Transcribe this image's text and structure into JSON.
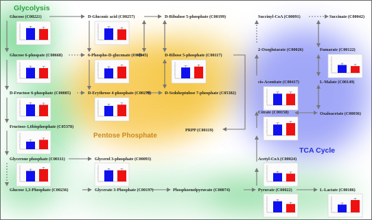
{
  "colors": {
    "blue": "#1010ee",
    "red": "#ee1111",
    "arrow": "#777777"
  },
  "titles": {
    "glycolysis": "Glycolysis",
    "pentose": "Pentose Phosphate",
    "tca": "TCA Cycle"
  },
  "metabolites": [
    {
      "label": "Glucose (C00221)"
    },
    {
      "label": "Glucose 6-phospate (C00668)"
    },
    {
      "label": "D-Fructose 6-phosphate (C00085)"
    },
    {
      "label": "Fructose-1,6bisphosphate (C05378)"
    },
    {
      "label": "Glycerone phosphate (C00111)"
    },
    {
      "label": "Glucose 1,3-Phosphate (C00236)"
    },
    {
      "label": "D-Gluconic acid (C00257)"
    },
    {
      "label": "6-Phospho-D-gluconate (C00345)"
    },
    {
      "label": "D-Erythrose 4-phosphate (C00279)"
    },
    {
      "label": "Glycerol 3-phosphate (C00093)"
    },
    {
      "label": "Glycerate 3-Phosphate (C00197)"
    },
    {
      "label": "D-Ribulose 5-phosphate (C00199)"
    },
    {
      "label": "D-Ribose 5-phosphate (C00117)"
    },
    {
      "label": "D-Sedoheptulose 7-phosphate (C05382)"
    },
    {
      "label": "PRPP (C00119)"
    },
    {
      "label": "Phosphoenolpyruvate (C00074)"
    },
    {
      "label": "Succinyl-CoA (C00091)"
    },
    {
      "label": "2-Oxoglutarate (C00026)"
    },
    {
      "label": "cis-Aconitate (C00417)"
    },
    {
      "label": "Citrate (C00158)"
    },
    {
      "label": "Acetyl-CoA (C00024)"
    },
    {
      "label": "Pyruvate (C00022)"
    },
    {
      "label": "Succinate (C00042)"
    },
    {
      "label": "Fumarate (C00122)"
    },
    {
      "label": "L-Malate (C00149)"
    },
    {
      "label": "Oxaloacetate (C00036)"
    },
    {
      "label": "L-Lactate (C00186)"
    }
  ],
  "charts": [
    {
      "name": "glucose",
      "values": [
        0.78,
        0.72
      ]
    },
    {
      "name": "glucose-6-phosphate",
      "values": [
        0.7,
        0.68
      ]
    },
    {
      "name": "fructose-6-phosphate",
      "values": [
        0.78,
        0.75
      ]
    },
    {
      "name": "fructose-bisphosphate",
      "values": [
        0.5,
        0.62
      ]
    },
    {
      "name": "glycerone-phosphate",
      "values": [
        0.7,
        0.82
      ]
    },
    {
      "name": "gluconic-acid",
      "values": [
        0.76,
        0.7
      ]
    },
    {
      "name": "phosphogluconate",
      "values": [
        0.66,
        0.78
      ]
    },
    {
      "name": "erythrose-4-phosphate",
      "values": [
        0.68,
        0.76
      ]
    },
    {
      "name": "glycerol-3-phosphate",
      "values": [
        0.74,
        0.74
      ]
    },
    {
      "name": "ribose-5-phosphate",
      "values": [
        0.72,
        0.78
      ]
    },
    {
      "name": "cis-aconitate",
      "values": [
        0.76,
        0.76
      ]
    },
    {
      "name": "citrate",
      "values": [
        0.72,
        0.82
      ]
    },
    {
      "name": "acetyl-coa",
      "values": [
        0.56,
        0.52
      ]
    },
    {
      "name": "pyruvate",
      "values": [
        0.74,
        0.56
      ]
    },
    {
      "name": "fumarate",
      "values": [
        0.52,
        0.45
      ]
    },
    {
      "name": "lactate",
      "values": [
        0.52,
        0.82
      ]
    }
  ]
}
